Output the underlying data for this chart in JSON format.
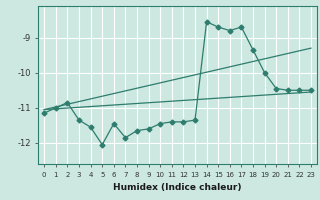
{
  "xlabel": "Humidex (Indice chaleur)",
  "ylabel": "",
  "bg_color": "#cce8e0",
  "grid_color": "#ffffff",
  "line_color": "#2e7d6e",
  "xlim": [
    -0.5,
    23.5
  ],
  "ylim": [
    -12.6,
    -8.1
  ],
  "yticks": [
    -12,
    -11,
    -10,
    -9
  ],
  "xticks": [
    0,
    1,
    2,
    3,
    4,
    5,
    6,
    7,
    8,
    9,
    10,
    11,
    12,
    13,
    14,
    15,
    16,
    17,
    18,
    19,
    20,
    21,
    22,
    23
  ],
  "zigzag_x": [
    0,
    1,
    2,
    3,
    4,
    5,
    6,
    7,
    8,
    9,
    10,
    11,
    12,
    13,
    14,
    15,
    16,
    17,
    18,
    19,
    20,
    21,
    22,
    23
  ],
  "zigzag_y": [
    -11.15,
    -11.0,
    -10.85,
    -11.35,
    -11.55,
    -12.05,
    -11.45,
    -11.85,
    -11.65,
    -11.6,
    -11.45,
    -11.4,
    -11.4,
    -11.35,
    -8.55,
    -8.7,
    -8.8,
    -8.7,
    -9.35,
    -10.0,
    -10.45,
    -10.5,
    -10.5,
    -10.5
  ],
  "upper_line_x": [
    0,
    23
  ],
  "upper_line_y": [
    -11.05,
    -9.3
  ],
  "lower_line_x": [
    0,
    23
  ],
  "lower_line_y": [
    -11.05,
    -10.55
  ],
  "marker_size": 2.5,
  "line_width": 0.9
}
